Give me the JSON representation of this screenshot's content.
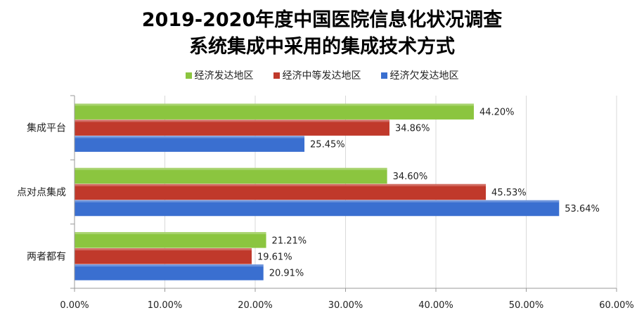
{
  "title_line1": "2019-2020年度中国医院信息化状况调查",
  "title_line2": "系统集成中采用的集成技术方式",
  "chart_data": {
    "type": "bar",
    "orientation": "horizontal",
    "categories": [
      "集成平台",
      "点对点集成",
      "两者都有"
    ],
    "series": [
      {
        "name": "经济发达地区",
        "values": [
          44.2,
          34.6,
          21.21
        ],
        "color": "#8BC53F"
      },
      {
        "name": "经济中等发达地区",
        "values": [
          34.86,
          45.53,
          19.61
        ],
        "color": "#C0392B"
      },
      {
        "name": "经济欠发达地区",
        "values": [
          25.45,
          53.64,
          20.91
        ],
        "color": "#3A6FD0"
      }
    ],
    "xlim": [
      0,
      60
    ],
    "xticks": [
      "0.00%",
      "10.00%",
      "20.00%",
      "30.00%",
      "40.00%",
      "50.00%",
      "60.00%"
    ],
    "data_labels": [
      [
        "44.20%",
        "34.60%",
        "21.21%"
      ],
      [
        "34.86%",
        "45.53%",
        "19.61%"
      ],
      [
        "25.45%",
        "53.64%",
        "20.91%"
      ]
    ],
    "grid": true,
    "legend_position": "top"
  }
}
